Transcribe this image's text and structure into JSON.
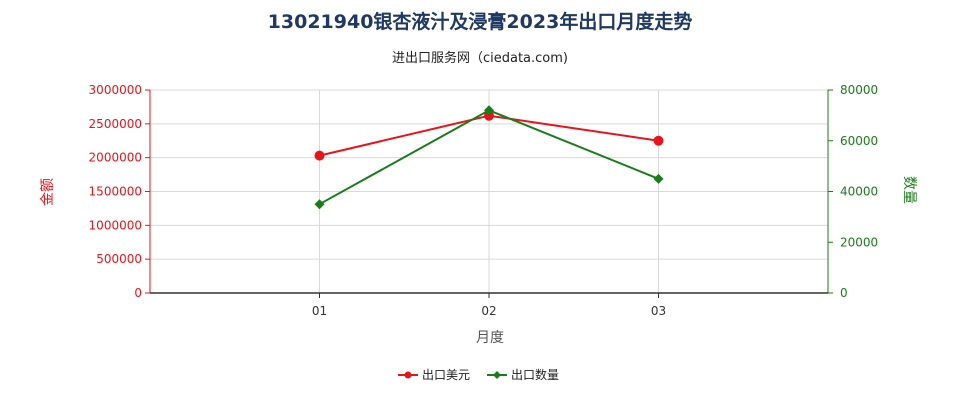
{
  "title": "13021940银杏液汁及浸膏2023年出口月度走势",
  "subtitle": "进出口服务网（ciedata.com)",
  "chart_data": {
    "type": "line",
    "categories": [
      "01",
      "02",
      "03"
    ],
    "xlabel": "月度",
    "y_left": {
      "label": "金额",
      "ticks": [
        "0",
        "500000",
        "1000000",
        "1500000",
        "2000000",
        "2500000",
        "3000000"
      ],
      "range": [
        0,
        3000000
      ],
      "color": "#e8141b"
    },
    "y_right": {
      "label": "数量",
      "ticks": [
        "0",
        "20000",
        "40000",
        "60000",
        "80000"
      ],
      "range": [
        0,
        80000
      ],
      "color": "#1a7d1a"
    },
    "grid": true,
    "legend_position": "bottom-center",
    "series": [
      {
        "name": "出口美元",
        "axis": "left",
        "values": [
          2030000,
          2620000,
          2250000
        ],
        "color": "#e8141b",
        "marker": "circle"
      },
      {
        "name": "出口数量",
        "axis": "right",
        "values": [
          35000,
          72000,
          45000
        ],
        "color": "#1a7d1a",
        "marker": "diamond"
      }
    ]
  }
}
